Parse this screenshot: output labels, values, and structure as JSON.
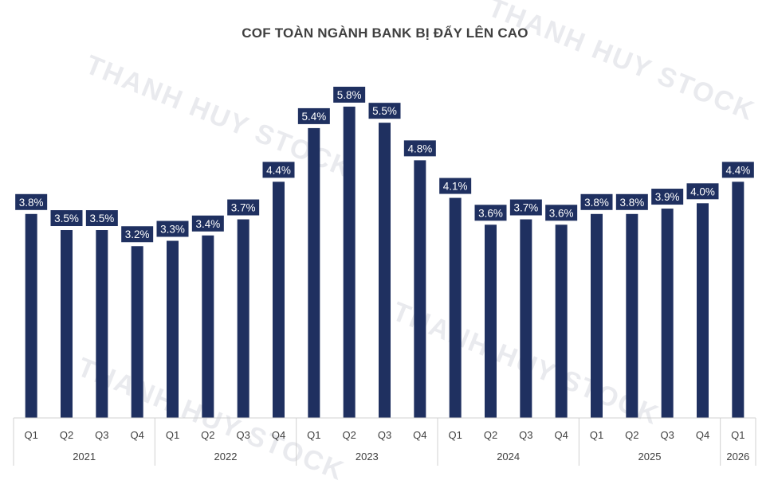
{
  "watermark": "THANH HUY STOCK",
  "chart_data": {
    "type": "bar",
    "title": "COF TOÀN NGÀNH BANK BỊ ĐẨY LÊN CAO",
    "xlabel": "",
    "ylabel": "",
    "ylim": [
      0,
      6.6
    ],
    "grid": false,
    "legend": "none",
    "bar_color": "#1f3060",
    "categories": [
      {
        "quarter": "Q1",
        "year": "2021"
      },
      {
        "quarter": "Q2",
        "year": "2021"
      },
      {
        "quarter": "Q3",
        "year": "2021"
      },
      {
        "quarter": "Q4",
        "year": "2021"
      },
      {
        "quarter": "Q1",
        "year": "2022"
      },
      {
        "quarter": "Q2",
        "year": "2022"
      },
      {
        "quarter": "Q3",
        "year": "2022"
      },
      {
        "quarter": "Q4",
        "year": "2022"
      },
      {
        "quarter": "Q1",
        "year": "2023"
      },
      {
        "quarter": "Q2",
        "year": "2023"
      },
      {
        "quarter": "Q3",
        "year": "2023"
      },
      {
        "quarter": "Q4",
        "year": "2023"
      },
      {
        "quarter": "Q1",
        "year": "2024"
      },
      {
        "quarter": "Q2",
        "year": "2024"
      },
      {
        "quarter": "Q3",
        "year": "2024"
      },
      {
        "quarter": "Q4",
        "year": "2024"
      },
      {
        "quarter": "Q1",
        "year": "2025"
      },
      {
        "quarter": "Q2",
        "year": "2025"
      },
      {
        "quarter": "Q3",
        "year": "2025"
      },
      {
        "quarter": "Q4",
        "year": "2025"
      },
      {
        "quarter": "Q1",
        "year": "2026"
      }
    ],
    "values": [
      3.8,
      3.5,
      3.5,
      3.2,
      3.3,
      3.4,
      3.7,
      4.4,
      5.4,
      5.8,
      5.5,
      4.8,
      4.1,
      3.6,
      3.7,
      3.6,
      3.8,
      3.8,
      3.9,
      4.0,
      4.4
    ],
    "labels": [
      "3.8%",
      "3.5%",
      "3.5%",
      "3.2%",
      "3.3%",
      "3.4%",
      "3.7%",
      "4.4%",
      "5.4%",
      "5.8%",
      "5.5%",
      "4.8%",
      "4.1%",
      "3.6%",
      "3.7%",
      "3.6%",
      "3.8%",
      "3.8%",
      "3.9%",
      "4.0%",
      "4.4%"
    ],
    "years": [
      "2021",
      "2022",
      "2023",
      "2024",
      "2025",
      "2026"
    ]
  }
}
